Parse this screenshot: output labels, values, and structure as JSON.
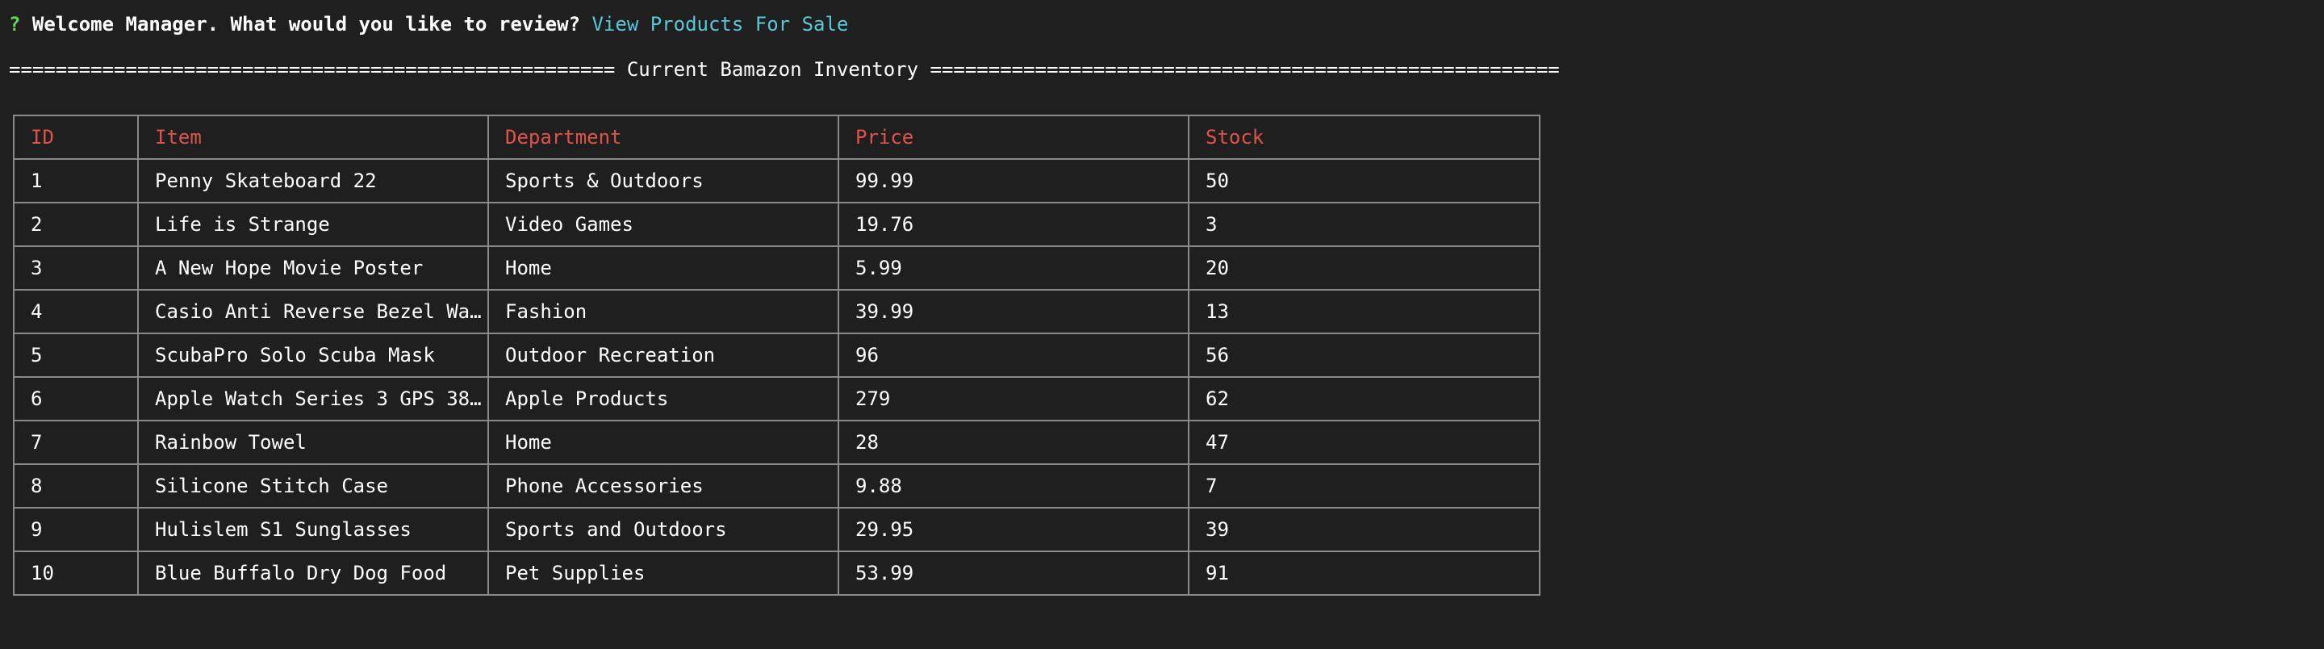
{
  "prompt": {
    "marker": "?",
    "question": "Welcome Manager. What would you like to review?",
    "answer": "View Products For Sale"
  },
  "banner": {
    "title": "Current Bamazon Inventory",
    "rule_left": "====================================================",
    "rule_right": "======================================================"
  },
  "table": {
    "columns": [
      "ID",
      "Item",
      "Department",
      "Price",
      "Stock"
    ],
    "rows": [
      [
        "1",
        "Penny Skateboard 22",
        "Sports & Outdoors",
        "99.99",
        "50"
      ],
      [
        "2",
        "Life is Strange",
        "Video Games",
        "19.76",
        "3"
      ],
      [
        "3",
        "A New Hope Movie Poster",
        "Home",
        "5.99",
        "20"
      ],
      [
        "4",
        "Casio Anti Reverse Bezel Wa…",
        "Fashion",
        "39.99",
        "13"
      ],
      [
        "5",
        "ScubaPro Solo Scuba Mask",
        "Outdoor Recreation",
        "96",
        "56"
      ],
      [
        "6",
        "Apple Watch Series 3 GPS 38…",
        "Apple Products",
        "279",
        "62"
      ],
      [
        "7",
        "Rainbow Towel",
        "Home",
        "28",
        "47"
      ],
      [
        "8",
        "Silicone Stitch Case",
        "Phone Accessories",
        "9.88",
        "7"
      ],
      [
        "9",
        "Hulislem S1 Sunglasses",
        "Sports and Outdoors",
        "29.95",
        "39"
      ],
      [
        "10",
        "Blue Buffalo Dry Dog Food",
        "Pet Supplies",
        "53.99",
        "91"
      ]
    ]
  },
  "colors": {
    "background": "#1f1f1f",
    "header_text": "#e0524a",
    "answer_text": "#59c8d6",
    "prompt_marker": "#5fd35f",
    "table_border": "#8a8a8a"
  }
}
